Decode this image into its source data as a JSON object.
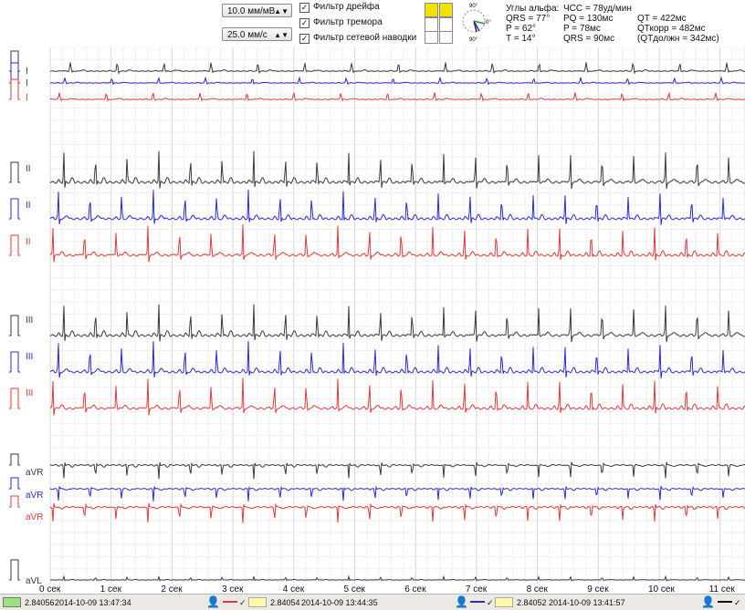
{
  "toolbar": {
    "gain": "10.0 мм/мВ",
    "speed": "25.0 мм/с",
    "filters": [
      {
        "label": "Фильтр дрейфа",
        "checked": true
      },
      {
        "label": "Фильтр тремора",
        "checked": true
      },
      {
        "label": "Фильтр сетевой наводки",
        "checked": true
      }
    ]
  },
  "measurements": {
    "angles_title": "Углы альфа:",
    "qrs_angle": "QRS = 77°",
    "p_angle": "P = 62°",
    "t_angle": "T = 14°",
    "hr": "ЧСС = 78уд/мин",
    "pq": "PQ = 130мс",
    "p": "P = 78мс",
    "qrs": "QRS = 90мс",
    "qt": "QT = 422мс",
    "qtc": "QТкорр = 482мс",
    "qtn": "(QТдолжн = 342мс)"
  },
  "compass": {
    "top": "90°",
    "right": "0°",
    "bottom": "90°"
  },
  "leads": [
    {
      "name": "I",
      "labels": [
        "I",
        "I",
        "I"
      ]
    },
    {
      "name": "II",
      "labels": [
        "II",
        "II",
        "II"
      ]
    },
    {
      "name": "III",
      "labels": [
        "III",
        "III",
        "III"
      ]
    },
    {
      "name": "aVR",
      "labels": [
        "aVR",
        "aVR",
        "aVR"
      ]
    },
    {
      "name": "aVL",
      "labels": [
        "aVL"
      ]
    }
  ],
  "colors": {
    "trace1": "#3a3a3a",
    "trace2": "#2a2ad6",
    "trace3": "#e23a3a",
    "grid_major": "#d6d6d6",
    "grid_minor": "#eeeeee"
  },
  "time_axis": [
    "0 сек",
    "1 сек",
    "2 сек",
    "3 сек",
    "4 сек",
    "5 сек",
    "6 сек",
    "7 сек",
    "8 сек",
    "9 сек",
    "10 сек",
    "11 сек"
  ],
  "status": [
    {
      "value": "2.84056",
      "date": "2014-10-09 13:47:34"
    },
    {
      "value": "2.84054",
      "date": "2014-10-09 13:44:35"
    },
    {
      "value": "2.84052",
      "date": "2014-10-09 13:41:57"
    }
  ]
}
